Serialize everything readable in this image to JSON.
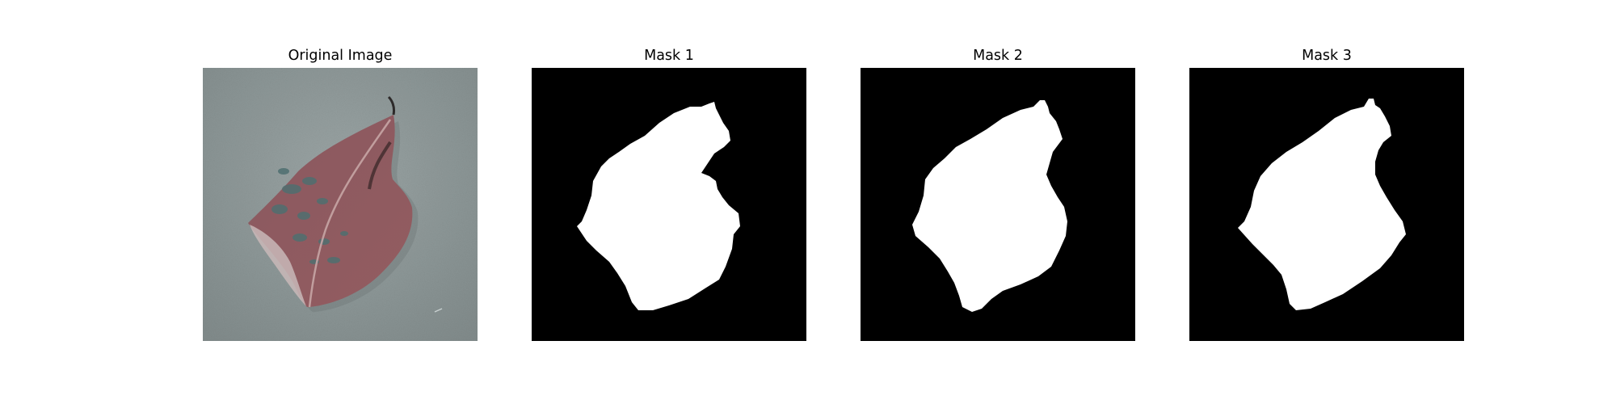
{
  "figure": {
    "panels": [
      {
        "title": "Original Image",
        "content": "leaf-photo"
      },
      {
        "title": "Mask 1",
        "content": "segmentation-mask"
      },
      {
        "title": "Mask 2",
        "content": "segmentation-mask"
      },
      {
        "title": "Mask 3",
        "content": "segmentation-mask"
      }
    ]
  },
  "colors": {
    "page_background": "#ffffff",
    "title_text": "#000000",
    "photo_background": "#8e9898",
    "leaf_primary": "#8a5a5e",
    "leaf_spots": "#4f6f70",
    "mask_background": "#000000",
    "mask_foreground": "#ffffff"
  }
}
